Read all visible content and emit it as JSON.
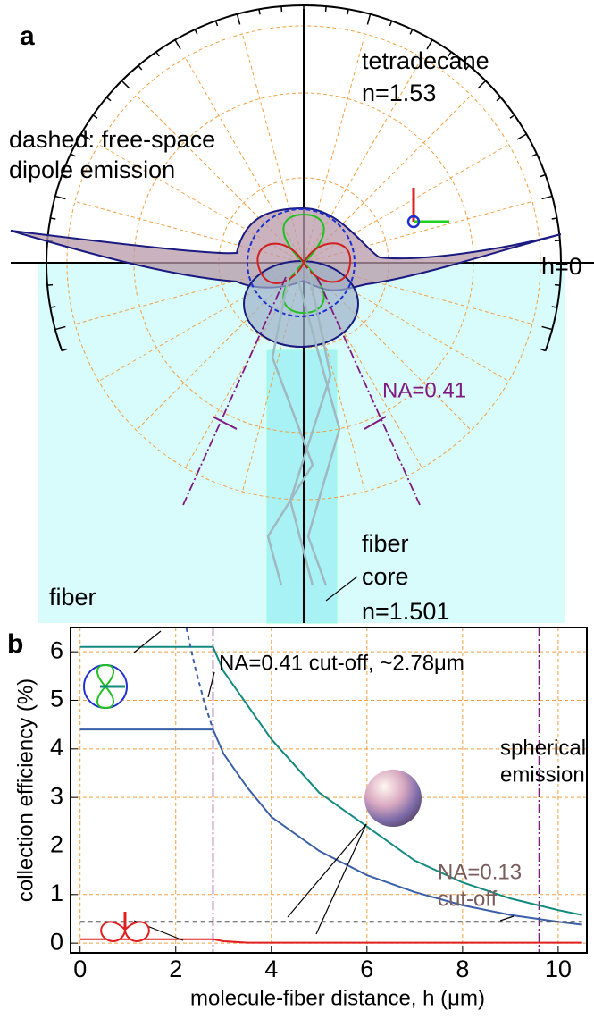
{
  "panel_a": {
    "label": "a",
    "medium": "tetradecane",
    "medium_index": "n=1.53",
    "legend_line1": "dashed: free-space",
    "legend_line2": "dipole emission",
    "interface": "h=0",
    "na_label": "NA=0.41",
    "fiber_label": "fiber",
    "core_line1": "fiber",
    "core_line2": "core",
    "core_index": "n=1.501"
  },
  "chart_data": {
    "type": "line",
    "panel_label": "b",
    "x_label": "molecule-fiber distance, h (μm)",
    "y_label": "collection efficiency (%)",
    "xlim": [
      -0.2,
      10.6
    ],
    "ylim": [
      -0.2,
      6.5
    ],
    "xticks": [
      0,
      2,
      4,
      6,
      8,
      10
    ],
    "yticks": [
      0,
      1,
      2,
      3,
      4,
      5,
      6
    ],
    "grid": true,
    "series": [
      {
        "color": "#138a80",
        "dash": false,
        "x": [
          0,
          2.78,
          3,
          3.5,
          4,
          5,
          6,
          7,
          8,
          9,
          10,
          10.5
        ],
        "values": [
          6.1,
          6.1,
          5.6,
          4.9,
          4.2,
          3.1,
          2.4,
          1.7,
          1.25,
          0.92,
          0.68,
          0.58
        ]
      },
      {
        "color": "#3a5fa8",
        "dash": false,
        "x": [
          0,
          2.78,
          3,
          3.5,
          4,
          5,
          6,
          7,
          8,
          9,
          10,
          10.5
        ],
        "values": [
          4.4,
          4.4,
          3.9,
          3.2,
          2.6,
          1.9,
          1.4,
          1.05,
          0.78,
          0.58,
          0.44,
          0.38
        ]
      },
      {
        "color": "#3a5fa8",
        "dash": true,
        "x": [
          2.22,
          2.4,
          2.6,
          2.78
        ],
        "values": [
          6.5,
          5.7,
          4.95,
          4.4
        ]
      },
      {
        "color": "#555555",
        "dash": true,
        "x": [
          0,
          10.5
        ],
        "values": [
          0.44,
          0.44
        ]
      },
      {
        "color": "#e02020",
        "dash": false,
        "x": [
          0,
          2.78,
          3,
          3.5,
          10.5
        ],
        "values": [
          0.08,
          0.08,
          0.04,
          0.01,
          0.01
        ]
      }
    ],
    "cutoffs": [
      2.78,
      9.6
    ],
    "annotations": [
      "NA=0.41 cut-off, ~2.78μm",
      "spherical",
      "emission",
      "NA=0.13",
      "cut-off"
    ]
  }
}
